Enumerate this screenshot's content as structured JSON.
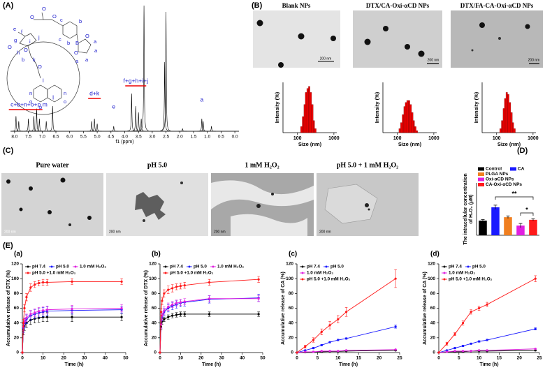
{
  "figure": {
    "panel_labels": [
      "(A)",
      "(B)",
      "(C)",
      "(D)",
      "(E)"
    ],
    "structure_labels": [
      "O",
      "O",
      "O",
      "c",
      "b",
      "c",
      "b",
      "B",
      "O",
      "O",
      "a",
      "a",
      "a",
      "a",
      "e",
      "f",
      "g",
      "O",
      "i",
      "j",
      "O",
      "h",
      "b",
      "k",
      "O",
      "l",
      "n",
      "o",
      "p",
      "n",
      "o"
    ],
    "tem_titles": [
      "Blank NPs",
      "DTX/CA-Oxi-αCD NPs",
      "DTX/FA-CA-Oxi-αCD NPs"
    ],
    "tem_scale": [
      "200 nm",
      "200 nm",
      "200 nm"
    ],
    "ph_titles": [
      "Pure water",
      "pH 5.0",
      "1 mM H₂O₂",
      "pH 5.0 + 1 mM H₂O₂"
    ],
    "ph_scale": [
      "200 nm",
      "200 nm",
      "200 nm",
      "200 nm"
    ]
  },
  "chart_data": [
    {
      "type": "spectrum",
      "xlabel": "f1 (ppm)",
      "xlim": [
        8.15,
        -0.15
      ],
      "ylim": [
        0,
        100
      ],
      "xticks": [
        {
          "value": 8,
          "label": "8.0"
        },
        7.5,
        {
          "value": 7,
          "label": "7.0"
        },
        6.5,
        {
          "value": 6,
          "label": "6.0"
        },
        5.5,
        {
          "value": 5,
          "label": "5.0"
        },
        4.5,
        {
          "value": 4,
          "label": "4.0"
        },
        3.5,
        {
          "value": 3,
          "label": "3.0"
        },
        2.5,
        {
          "value": 2,
          "label": "2.0"
        },
        1.5,
        {
          "value": 1,
          "label": "1.0"
        },
        0.5,
        {
          "value": 0,
          "label": "0.0"
        }
      ],
      "x": [
        7.95,
        7.85,
        7.5,
        7.3,
        7.2,
        7.1,
        6.85,
        6.62,
        5.2,
        5.1,
        5.0,
        4.4,
        3.75,
        3.6,
        3.5,
        3.4,
        3.3,
        2.55,
        2.5,
        1.9,
        1.2,
        1.15,
        0.85
      ],
      "values": [
        12,
        8,
        10,
        12,
        18,
        10,
        8,
        20,
        8,
        10,
        6,
        4,
        30,
        20,
        15,
        10,
        100,
        55,
        95,
        2,
        10,
        8,
        4
      ],
      "color": "#000000",
      "peak_labels": [
        {
          "text": "c+b+n+o+p",
          "x": 7.6
        },
        {
          "text": "m",
          "x": 6.9
        },
        {
          "text": "l",
          "x": 6.6
        },
        {
          "text": "d+k",
          "x": 5.1
        },
        {
          "text": "e",
          "x": 4.4
        },
        {
          "text": "f+g+h+i+j",
          "x": 3.6
        },
        {
          "text": "a",
          "x": 1.2
        }
      ]
    },
    {
      "type": "histogram",
      "xlabel": "Size (nm)",
      "ylabel": "Intensity (%)",
      "log_x": true,
      "xlim": [
        40,
        1200
      ],
      "xticks": [
        100,
        1000
      ],
      "ylim": [
        0,
        25
      ],
      "color": "#ee0000",
      "bins": [
        122,
        135,
        150,
        164,
        180,
        200,
        220,
        244,
        270,
        295,
        327
      ],
      "values": [
        3,
        8,
        14,
        20,
        22,
        23,
        20,
        14,
        6,
        2
      ]
    },
    {
      "type": "histogram",
      "xlabel": "Size (nm)",
      "ylabel": "Intensity (%)",
      "log_x": true,
      "xlim": [
        40,
        1200
      ],
      "xticks": [
        100,
        1000
      ],
      "ylim": [
        0,
        25
      ],
      "color": "#ee0000",
      "bins": [
        110,
        122,
        135,
        150,
        164,
        180,
        200,
        220,
        244,
        270,
        295,
        327,
        360
      ],
      "values": [
        2,
        5,
        9,
        13,
        15,
        16,
        16,
        14,
        10,
        6,
        3,
        1
      ]
    },
    {
      "type": "histogram",
      "xlabel": "Size (nm)",
      "ylabel": "Intensity (%)",
      "log_x": true,
      "xlim": [
        40,
        1200
      ],
      "xticks": [
        100,
        1000
      ],
      "ylim": [
        0,
        25
      ],
      "color": "#ee0000",
      "bins": [
        122,
        135,
        150,
        164,
        180,
        200,
        220,
        244,
        270,
        295,
        327
      ],
      "values": [
        2,
        6,
        12,
        17,
        20,
        19,
        15,
        10,
        5,
        2
      ]
    },
    {
      "type": "bar",
      "ylabel": [
        "The intracellular concentration",
        "of H₂O₂ (μM)"
      ],
      "ylim": [
        0,
        0.2
      ],
      "categories": [
        "Control",
        "CA",
        "PLGA NPs",
        "Oxi-αCD NPs",
        "CA-Oxi-αCD NPs"
      ],
      "colors": [
        "#000000",
        "#1a1aff",
        "#f07f20",
        "#e020e0",
        "#ff1a1a"
      ],
      "values": [
        0.056,
        0.107,
        0.069,
        0.037,
        0.059
      ],
      "errors": [
        0.004,
        0.008,
        0.005,
        0.008,
        0.004
      ],
      "annotations": [
        "**",
        "*"
      ]
    },
    {
      "type": "line",
      "title": "(a)",
      "xlabel": "Time (h)",
      "ylabel": "Accumulative release of DTX (%)",
      "xlim": [
        0,
        50
      ],
      "xticks": [
        0,
        10,
        20,
        30,
        40,
        50
      ],
      "ylim": [
        0,
        120
      ],
      "yticks": [
        0,
        20,
        40,
        60,
        80,
        100,
        120
      ],
      "x": [
        0,
        0.5,
        1,
        2,
        4,
        6,
        8,
        10,
        12,
        24,
        48
      ],
      "series": [
        {
          "name": "pH 7.4",
          "color": "#000000",
          "values": [
            0,
            30,
            36,
            40,
            44,
            46,
            47,
            48,
            48,
            48,
            48
          ],
          "errors": [
            0,
            6,
            6,
            6,
            6,
            6,
            6,
            6,
            6,
            6,
            5
          ]
        },
        {
          "name": "pH 5.0",
          "color": "#1a1aff",
          "values": [
            0,
            33,
            40,
            45,
            50,
            52,
            54,
            55,
            56,
            57,
            58
          ],
          "errors": [
            0,
            6,
            6,
            6,
            6,
            6,
            6,
            6,
            6,
            5,
            5
          ]
        },
        {
          "name": "1.0 mM H₂O₂",
          "color": "#e020e0",
          "values": [
            0,
            35,
            42,
            47,
            52,
            54,
            56,
            57,
            58,
            59,
            60
          ],
          "errors": [
            0,
            5,
            5,
            5,
            5,
            5,
            5,
            5,
            5,
            5,
            5
          ]
        },
        {
          "name": "pH 5.0 +1.0 mM H₂O₂",
          "color": "#ff1a1a",
          "values": [
            0,
            40,
            60,
            75,
            88,
            92,
            94,
            95,
            95,
            96,
            96
          ],
          "errors": [
            0,
            5,
            5,
            5,
            5,
            4,
            4,
            4,
            4,
            4,
            4
          ]
        }
      ]
    },
    {
      "type": "line",
      "title": "(b)",
      "xlabel": "Time (h)",
      "ylabel": "Accumulative release of DTX (%)",
      "xlim": [
        0,
        50
      ],
      "xticks": [
        0,
        10,
        20,
        30,
        40,
        50
      ],
      "ylim": [
        0,
        120
      ],
      "yticks": [
        0,
        20,
        40,
        60,
        80,
        100,
        120
      ],
      "x": [
        0,
        0.5,
        1,
        2,
        4,
        6,
        8,
        10,
        12,
        24,
        48
      ],
      "series": [
        {
          "name": "pH 7.4",
          "color": "#000000",
          "values": [
            0,
            35,
            42,
            45,
            48,
            50,
            51,
            52,
            52,
            52,
            52
          ],
          "errors": [
            0,
            4,
            4,
            3,
            3,
            3,
            3,
            3,
            3,
            3,
            3
          ]
        },
        {
          "name": "pH 5.0",
          "color": "#1a1aff",
          "values": [
            0,
            38,
            48,
            55,
            60,
            63,
            65,
            67,
            68,
            72,
            74
          ],
          "errors": [
            0,
            5,
            5,
            5,
            5,
            5,
            5,
            5,
            5,
            5,
            5
          ]
        },
        {
          "name": "1.0 mM H₂O₂",
          "color": "#e020e0",
          "values": [
            0,
            38,
            50,
            57,
            62,
            65,
            67,
            68,
            69,
            73,
            73
          ],
          "errors": [
            0,
            5,
            5,
            5,
            5,
            4,
            4,
            4,
            4,
            4,
            4
          ]
        },
        {
          "name": "pH 5.0 +1.0 mM H₂O₂",
          "color": "#ff1a1a",
          "values": [
            0,
            55,
            70,
            80,
            85,
            87,
            89,
            90,
            91,
            95,
            99
          ],
          "errors": [
            0,
            5,
            5,
            5,
            5,
            5,
            4,
            4,
            4,
            4,
            4
          ]
        }
      ]
    },
    {
      "type": "line",
      "title": "(c)",
      "xlabel": "Time (h)",
      "ylabel": "Accumulative release of CA (%)",
      "xlim": [
        0,
        25
      ],
      "xticks": [
        0,
        5,
        10,
        15,
        20,
        25
      ],
      "ylim": [
        0,
        120
      ],
      "yticks": [
        0,
        20,
        40,
        60,
        80,
        100,
        120
      ],
      "x": [
        0,
        2,
        4,
        6,
        8,
        10,
        12,
        24
      ],
      "series": [
        {
          "name": "pH 7.4",
          "color": "#000000",
          "values": [
            0,
            0.5,
            1,
            1,
            1.5,
            1.5,
            2,
            3
          ],
          "errors": [
            0,
            0.3,
            0.3,
            0.3,
            0.3,
            0.3,
            0.3,
            0.5
          ]
        },
        {
          "name": "pH 5.0",
          "color": "#1a1aff",
          "values": [
            0,
            3,
            6,
            10,
            14,
            17,
            19,
            35
          ],
          "errors": [
            0,
            0.5,
            1,
            1,
            1,
            1,
            1,
            2
          ]
        },
        {
          "name": "1.0 mM H₂O₂",
          "color": "#e020e0",
          "values": [
            0,
            1,
            1,
            2,
            2,
            2,
            3,
            4
          ],
          "errors": [
            0,
            0.3,
            0.3,
            0.3,
            0.3,
            0.3,
            0.3,
            0.5
          ]
        },
        {
          "name": "pH 5.0 +1.0 mM H₂O₂",
          "color": "#ff1a1a",
          "values": [
            0,
            8,
            17,
            28,
            37,
            45,
            55,
            100
          ],
          "errors": [
            0,
            2,
            3,
            4,
            5,
            5,
            6,
            12
          ]
        }
      ]
    },
    {
      "type": "line",
      "title": "(d)",
      "xlabel": "Time (h)",
      "ylabel": "Accumulative release of CA (%)",
      "xlim": [
        0,
        25
      ],
      "xticks": [
        0,
        5,
        10,
        15,
        20,
        25
      ],
      "ylim": [
        0,
        120
      ],
      "yticks": [
        0,
        20,
        40,
        60,
        80,
        100,
        120
      ],
      "x": [
        0,
        2,
        4,
        6,
        8,
        10,
        12,
        24
      ],
      "series": [
        {
          "name": "pH 7.4",
          "color": "#000000",
          "values": [
            0,
            1,
            1,
            1,
            2,
            2,
            2,
            3
          ],
          "errors": [
            0,
            0.3,
            0.3,
            0.3,
            0.3,
            0.3,
            0.3,
            0.5
          ]
        },
        {
          "name": "pH 5.0",
          "color": "#1a1aff",
          "values": [
            0,
            3,
            6,
            9,
            12,
            15,
            17,
            32
          ],
          "errors": [
            0,
            0.5,
            1,
            1,
            1,
            1,
            1,
            1.5
          ]
        },
        {
          "name": "1.0 mM H₂O₂",
          "color": "#e020e0",
          "values": [
            0,
            1,
            2,
            2,
            2,
            3,
            3,
            5
          ],
          "errors": [
            0,
            0.3,
            0.3,
            0.3,
            0.3,
            0.3,
            0.3,
            0.5
          ]
        },
        {
          "name": "pH 5.0 +1.0 mM H₂O₂",
          "color": "#ff1a1a",
          "values": [
            0,
            12,
            25,
            40,
            55,
            60,
            65,
            100
          ],
          "errors": [
            0,
            2,
            2,
            3,
            3,
            3,
            3,
            4
          ]
        }
      ]
    }
  ]
}
